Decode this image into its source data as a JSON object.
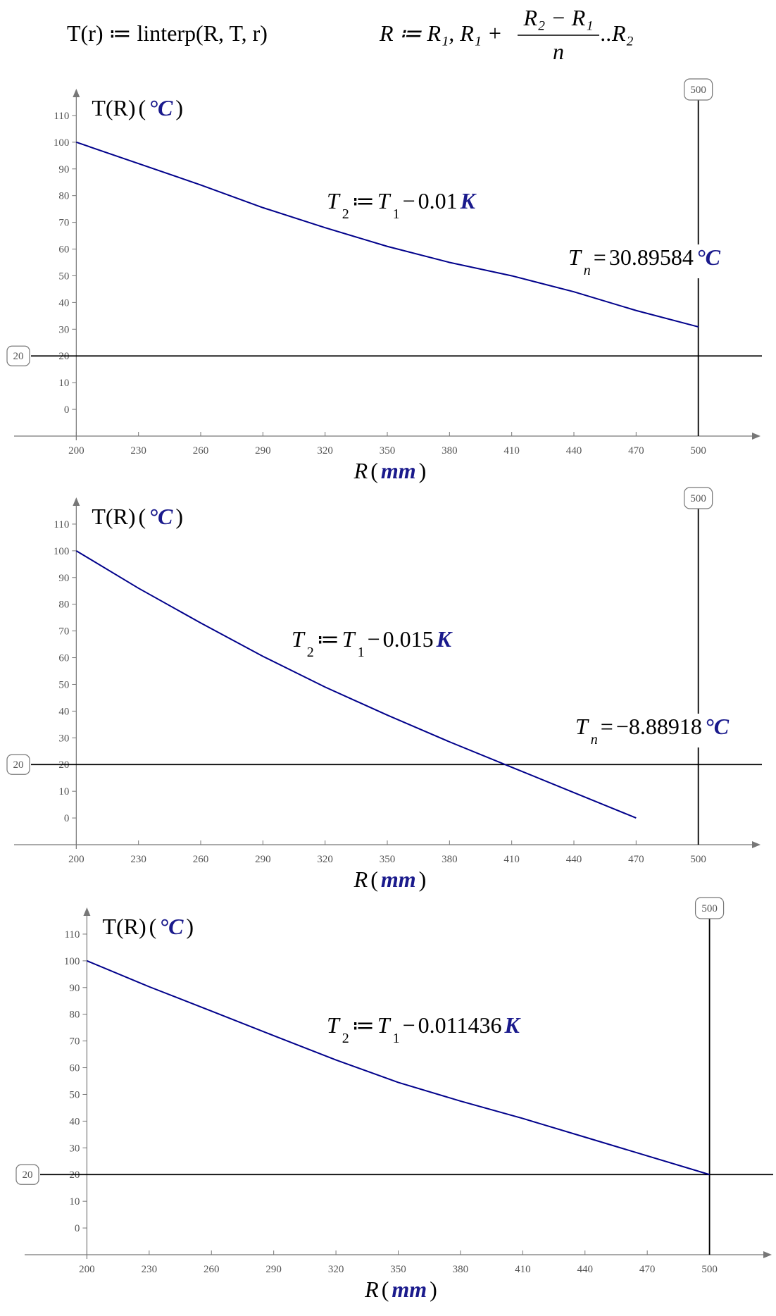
{
  "header": {
    "formula1": "T(r) ≔ linterp(R, T, r)",
    "formula2_lhs": "R ≔ R₁, R₁ +",
    "formula2_numerator": "R₂ − R₁",
    "formula2_denominator": "n",
    "formula2_tail": "..R₂"
  },
  "chart_data": [
    {
      "type": "line",
      "x": [
        200,
        230,
        260,
        290,
        320,
        350,
        380,
        410,
        440,
        470,
        500
      ],
      "values": [
        100,
        92,
        84,
        75.5,
        68,
        61,
        55,
        50,
        44,
        37,
        30.89584
      ],
      "color": "#00008b",
      "xlim": [
        170,
        530
      ],
      "ylim": [
        -10,
        120
      ],
      "xticks": [
        200,
        230,
        260,
        290,
        320,
        350,
        380,
        410,
        440,
        470,
        500
      ],
      "yticks": [
        0,
        10,
        20,
        30,
        40,
        50,
        60,
        70,
        80,
        90,
        100,
        110
      ],
      "x_label": {
        "name": "R",
        "open": "(",
        "unit": "mm",
        "close": ")"
      },
      "y_label": {
        "name": "T(R)",
        "open": "(",
        "unit": "°C",
        "close": ")"
      },
      "hmarker": 20,
      "vmarker": 500,
      "definition": {
        "symbol": "T",
        "subscript": "2",
        "op": "≔",
        "rhs": "T",
        "rhs_subscript": "1",
        "minus": "−",
        "value": "0.01",
        "unit": "K"
      },
      "result": {
        "symbol": "T",
        "subscript": "n",
        "op": "=",
        "value": "30.89584",
        "unit": "°C"
      }
    },
    {
      "type": "line",
      "x": [
        200,
        230,
        260,
        290,
        320,
        350,
        380,
        410,
        440,
        470
      ],
      "values": [
        100,
        86,
        73,
        60.5,
        49,
        38.5,
        28.5,
        19,
        9.5,
        0
      ],
      "color": "#00008b",
      "xlim": [
        170,
        530
      ],
      "ylim": [
        -10,
        120
      ],
      "xticks": [
        200,
        230,
        260,
        290,
        320,
        350,
        380,
        410,
        440,
        470,
        500
      ],
      "yticks": [
        0,
        10,
        20,
        30,
        40,
        50,
        60,
        70,
        80,
        90,
        100,
        110
      ],
      "x_label": {
        "name": "R",
        "open": "(",
        "unit": "mm",
        "close": ")"
      },
      "y_label": {
        "name": "T(R)",
        "open": "(",
        "unit": "°C",
        "close": ")"
      },
      "hmarker": 20,
      "vmarker": 500,
      "definition": {
        "symbol": "T",
        "subscript": "2",
        "op": "≔",
        "rhs": "T",
        "rhs_subscript": "1",
        "minus": "−",
        "value": "0.015",
        "unit": "K"
      },
      "result": {
        "symbol": "T",
        "subscript": "n",
        "op": "=",
        "value": "−8.88918",
        "unit": "°C"
      }
    },
    {
      "type": "line",
      "x": [
        200,
        230,
        260,
        290,
        320,
        350,
        380,
        410,
        440,
        470,
        500
      ],
      "values": [
        100,
        90.3,
        81.2,
        72,
        62.9,
        54.5,
        47.5,
        41,
        34,
        27,
        20
      ],
      "color": "#00008b",
      "xlim": [
        170,
        530
      ],
      "ylim": [
        -10,
        120
      ],
      "xticks": [
        200,
        230,
        260,
        290,
        320,
        350,
        380,
        410,
        440,
        470,
        500
      ],
      "yticks": [
        0,
        10,
        20,
        30,
        40,
        50,
        60,
        70,
        80,
        90,
        100,
        110
      ],
      "x_label": {
        "name": "R",
        "open": "(",
        "unit": "mm",
        "close": ")"
      },
      "y_label": {
        "name": "T(R)",
        "open": "(",
        "unit": "°C",
        "close": ")"
      },
      "hmarker": 20,
      "vmarker": 500,
      "definition": {
        "symbol": "T",
        "subscript": "2",
        "op": "≔",
        "rhs": "T",
        "rhs_subscript": "1",
        "minus": "−",
        "value": "0.011436",
        "unit": "K"
      }
    }
  ]
}
